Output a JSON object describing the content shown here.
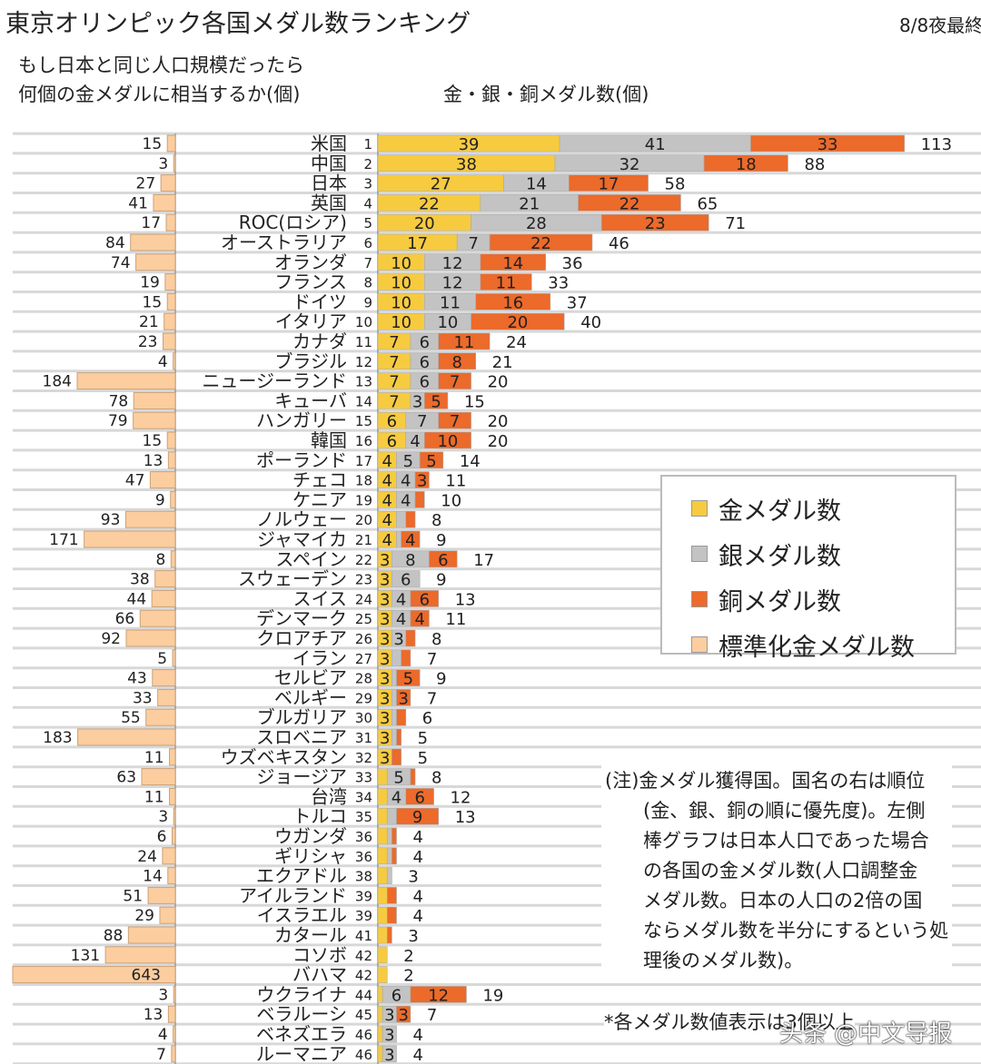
{
  "header": {
    "title": "東京オリンピック各国メダル数ランキング",
    "date": "8/8夜最終",
    "left_subtitle_1": "もし日本と同じ人口規模だったら",
    "left_subtitle_2": "何個の金メダルに相当するか(個)",
    "right_subtitle": "金・銀・銅メダル数(個)"
  },
  "legend": [
    {
      "label": "金メダル数",
      "color": "#f7cb3f"
    },
    {
      "label": "銀メダル数",
      "color": "#c3c3c3"
    },
    {
      "label": "銅メダル数",
      "color": "#ec6a2a"
    },
    {
      "label": "標準化金メダル数",
      "color": "#fbcd9f"
    }
  ],
  "note": [
    "(注)金メダル獲得国。国名の右は順位",
    "(金、銀、銅の順に優先度)。左側",
    "棒グラフは日本人口であった場合",
    "の各国の金メダル数(人口調整金",
    "メダル数。日本の人口の2倍の国",
    "ならメダル数を半分にするという処",
    "理後のメダル数)。"
  ],
  "footnote": "*各メダル数値表示は3個以上",
  "watermark": "头条 @中文导报",
  "chart_data": {
    "type": "bar",
    "orientation": "horizontal",
    "stacked_series": [
      "金メダル数",
      "銀メダル数",
      "銅メダル数"
    ],
    "mirror_series": "標準化金メダル数",
    "label_threshold": 3,
    "grid": true,
    "legend_position": "right",
    "countries": [
      {
        "name": "米国",
        "rank": "1",
        "gold": 39,
        "silver": 41,
        "bronze": 33,
        "total": 113,
        "std": 15
      },
      {
        "name": "中国",
        "rank": "2",
        "gold": 38,
        "silver": 32,
        "bronze": 18,
        "total": 88,
        "std": 3
      },
      {
        "name": "日本",
        "rank": "3",
        "gold": 27,
        "silver": 14,
        "bronze": 17,
        "total": 58,
        "std": 27
      },
      {
        "name": "英国",
        "rank": "4",
        "gold": 22,
        "silver": 21,
        "bronze": 22,
        "total": 65,
        "std": 41
      },
      {
        "name": "ROC(ロシア)",
        "rank": "5",
        "gold": 20,
        "silver": 28,
        "bronze": 23,
        "total": 71,
        "std": 17
      },
      {
        "name": "オーストラリア",
        "rank": "6",
        "gold": 17,
        "silver": 7,
        "bronze": 22,
        "total": 46,
        "std": 84
      },
      {
        "name": "オランダ",
        "rank": "7",
        "gold": 10,
        "silver": 12,
        "bronze": 14,
        "total": 36,
        "std": 74
      },
      {
        "name": "フランス",
        "rank": "8",
        "gold": 10,
        "silver": 12,
        "bronze": 11,
        "total": 33,
        "std": 19
      },
      {
        "name": "ドイツ",
        "rank": "9",
        "gold": 10,
        "silver": 11,
        "bronze": 16,
        "total": 37,
        "std": 15
      },
      {
        "name": "イタリア",
        "rank": "10",
        "gold": 10,
        "silver": 10,
        "bronze": 20,
        "total": 40,
        "std": 21
      },
      {
        "name": "カナダ",
        "rank": "11",
        "gold": 7,
        "silver": 6,
        "bronze": 11,
        "total": 24,
        "std": 23
      },
      {
        "name": "ブラジル",
        "rank": "12",
        "gold": 7,
        "silver": 6,
        "bronze": 8,
        "total": 21,
        "std": 4
      },
      {
        "name": "ニュージーランド",
        "rank": "13",
        "gold": 7,
        "silver": 6,
        "bronze": 7,
        "total": 20,
        "std": 184
      },
      {
        "name": "キューバ",
        "rank": "14",
        "gold": 7,
        "silver": 3,
        "bronze": 5,
        "total": 15,
        "std": 78
      },
      {
        "name": "ハンガリー",
        "rank": "15",
        "gold": 6,
        "silver": 7,
        "bronze": 7,
        "total": 20,
        "std": 79
      },
      {
        "name": "韓国",
        "rank": "16",
        "gold": 6,
        "silver": 4,
        "bronze": 10,
        "total": 20,
        "std": 15
      },
      {
        "name": "ポーランド",
        "rank": "17",
        "gold": 4,
        "silver": 5,
        "bronze": 5,
        "total": 14,
        "std": 13
      },
      {
        "name": "チェコ",
        "rank": "18",
        "gold": 4,
        "silver": 4,
        "bronze": 3,
        "total": 11,
        "std": 47
      },
      {
        "name": "ケニア",
        "rank": "19",
        "gold": 4,
        "silver": 4,
        "bronze": 2,
        "total": 10,
        "std": 9
      },
      {
        "name": "ノルウェー",
        "rank": "20",
        "gold": 4,
        "silver": 2,
        "bronze": 2,
        "total": 8,
        "std": 93
      },
      {
        "name": "ジャマイカ",
        "rank": "21",
        "gold": 4,
        "silver": 1,
        "bronze": 4,
        "total": 9,
        "std": 171
      },
      {
        "name": "スペイン",
        "rank": "22",
        "gold": 3,
        "silver": 8,
        "bronze": 6,
        "total": 17,
        "std": 8
      },
      {
        "name": "スウェーデン",
        "rank": "23",
        "gold": 3,
        "silver": 6,
        "bronze": 0,
        "total": 9,
        "std": 38
      },
      {
        "name": "スイス",
        "rank": "24",
        "gold": 3,
        "silver": 4,
        "bronze": 6,
        "total": 13,
        "std": 44
      },
      {
        "name": "デンマーク",
        "rank": "25",
        "gold": 3,
        "silver": 4,
        "bronze": 4,
        "total": 11,
        "std": 66
      },
      {
        "name": "クロアチア",
        "rank": "26",
        "gold": 3,
        "silver": 3,
        "bronze": 2,
        "total": 8,
        "std": 92
      },
      {
        "name": "イラン",
        "rank": "27",
        "gold": 3,
        "silver": 2,
        "bronze": 2,
        "total": 7,
        "std": 5
      },
      {
        "name": "セルビア",
        "rank": "28",
        "gold": 3,
        "silver": 1,
        "bronze": 5,
        "total": 9,
        "std": 43
      },
      {
        "name": "ベルギー",
        "rank": "29",
        "gold": 3,
        "silver": 1,
        "bronze": 3,
        "total": 7,
        "std": 33
      },
      {
        "name": "ブルガリア",
        "rank": "30",
        "gold": 3,
        "silver": 1,
        "bronze": 2,
        "total": 6,
        "std": 55
      },
      {
        "name": "スロベニア",
        "rank": "31",
        "gold": 3,
        "silver": 1,
        "bronze": 1,
        "total": 5,
        "std": 183
      },
      {
        "name": "ウズベキスタン",
        "rank": "32",
        "gold": 3,
        "silver": 0,
        "bronze": 2,
        "total": 5,
        "std": 11
      },
      {
        "name": "ジョージア",
        "rank": "33",
        "gold": 2,
        "silver": 5,
        "bronze": 1,
        "total": 8,
        "std": 63
      },
      {
        "name": "台湾",
        "rank": "34",
        "gold": 2,
        "silver": 4,
        "bronze": 6,
        "total": 12,
        "std": 11
      },
      {
        "name": "トルコ",
        "rank": "35",
        "gold": 2,
        "silver": 2,
        "bronze": 9,
        "total": 13,
        "std": 3
      },
      {
        "name": "ウガンダ",
        "rank": "36",
        "gold": 2,
        "silver": 1,
        "bronze": 1,
        "total": 4,
        "std": 6
      },
      {
        "name": "ギリシャ",
        "rank": "36",
        "gold": 2,
        "silver": 1,
        "bronze": 1,
        "total": 4,
        "std": 24
      },
      {
        "name": "エクアドル",
        "rank": "38",
        "gold": 2,
        "silver": 1,
        "bronze": 0,
        "total": 3,
        "std": 14
      },
      {
        "name": "アイルランド",
        "rank": "39",
        "gold": 2,
        "silver": 0,
        "bronze": 2,
        "total": 4,
        "std": 51
      },
      {
        "name": "イスラエル",
        "rank": "39",
        "gold": 2,
        "silver": 0,
        "bronze": 2,
        "total": 4,
        "std": 29
      },
      {
        "name": "カタール",
        "rank": "41",
        "gold": 2,
        "silver": 0,
        "bronze": 1,
        "total": 3,
        "std": 88
      },
      {
        "name": "コソボ",
        "rank": "42",
        "gold": 2,
        "silver": 0,
        "bronze": 0,
        "total": 2,
        "std": 131
      },
      {
        "name": "バハマ",
        "rank": "42",
        "gold": 2,
        "silver": 0,
        "bronze": 0,
        "total": 2,
        "std": 643
      },
      {
        "name": "ウクライナ",
        "rank": "44",
        "gold": 1,
        "silver": 6,
        "bronze": 12,
        "total": 19,
        "std": 3
      },
      {
        "name": "ベラルーシ",
        "rank": "45",
        "gold": 1,
        "silver": 3,
        "bronze": 3,
        "total": 7,
        "std": 13
      },
      {
        "name": "ベネズエラ",
        "rank": "46",
        "gold": 1,
        "silver": 3,
        "bronze": 0,
        "total": 4,
        "std": 4
      },
      {
        "name": "ルーマニア",
        "rank": "46",
        "gold": 1,
        "silver": 3,
        "bronze": 0,
        "total": 4,
        "std": 7
      }
    ]
  }
}
